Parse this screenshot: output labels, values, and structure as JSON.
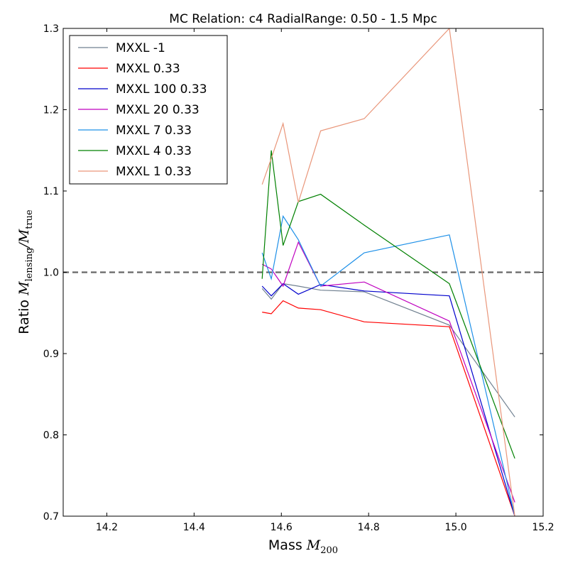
{
  "chart_data": {
    "type": "line",
    "title": "MC Relation: c4 RadialRange: 0.50 - 1.5 Mpc",
    "xlabel": {
      "prefix": "Mass ",
      "symbol": "M",
      "subscript": "200"
    },
    "ylabel": {
      "prefix": "Ratio ",
      "num_symbol": "M",
      "num_sub": "lensing",
      "slash": "/",
      "den_symbol": "M",
      "den_sub": "true"
    },
    "xlim": [
      14.1,
      15.2
    ],
    "ylim": [
      0.7,
      1.3
    ],
    "xticks": [
      14.2,
      14.4,
      14.6,
      14.8,
      15.0,
      15.2
    ],
    "xtick_labels": [
      "14.2",
      "14.4",
      "14.6",
      "14.8",
      "15.0",
      "15.2"
    ],
    "yticks": [
      0.7,
      0.8,
      0.9,
      1.0,
      1.1,
      1.2,
      1.3
    ],
    "ytick_labels": [
      "0.7",
      "0.8",
      "0.9",
      "1.0",
      "1.1",
      "1.2",
      "1.3"
    ],
    "reference_line": {
      "y": 1.0,
      "style": "dashed",
      "color": "#666666"
    },
    "legend": {
      "position": "top-left"
    },
    "x": [
      14.556,
      14.577,
      14.604,
      14.639,
      14.69,
      14.79,
      14.985,
      15.135
    ],
    "series": [
      {
        "name": "MXXL -1",
        "color": "#708090",
        "values": [
          0.98,
          0.967,
          0.986,
          0.983,
          0.978,
          0.976,
          0.935,
          0.822
        ]
      },
      {
        "name": "MXXL 0.33",
        "color": "#ff0000",
        "values": [
          0.951,
          0.949,
          0.965,
          0.956,
          0.954,
          0.939,
          0.933,
          0.7
        ]
      },
      {
        "name": "MXXL 100 0.33",
        "color": "#0000cc",
        "values": [
          0.983,
          0.971,
          0.986,
          0.973,
          0.985,
          0.977,
          0.971,
          0.7
        ]
      },
      {
        "name": "MXXL 20 0.33",
        "color": "#bf00bf",
        "values": [
          1.01,
          1.004,
          0.983,
          1.037,
          0.983,
          0.988,
          0.94,
          0.717
        ]
      },
      {
        "name": "MXXL 7 0.33",
        "color": "#1e90e8",
        "values": [
          1.024,
          0.992,
          1.069,
          1.04,
          0.983,
          1.024,
          1.046,
          0.7
        ]
      },
      {
        "name": "MXXL 4 0.33",
        "color": "#008000",
        "values": [
          0.992,
          1.15,
          1.033,
          1.087,
          1.096,
          1.058,
          0.986,
          0.771
        ]
      },
      {
        "name": "MXXL 1 0.33",
        "color": "#e9967a",
        "values": [
          1.108,
          1.14,
          1.183,
          1.086,
          1.174,
          1.189,
          1.3,
          0.7
        ]
      }
    ]
  }
}
